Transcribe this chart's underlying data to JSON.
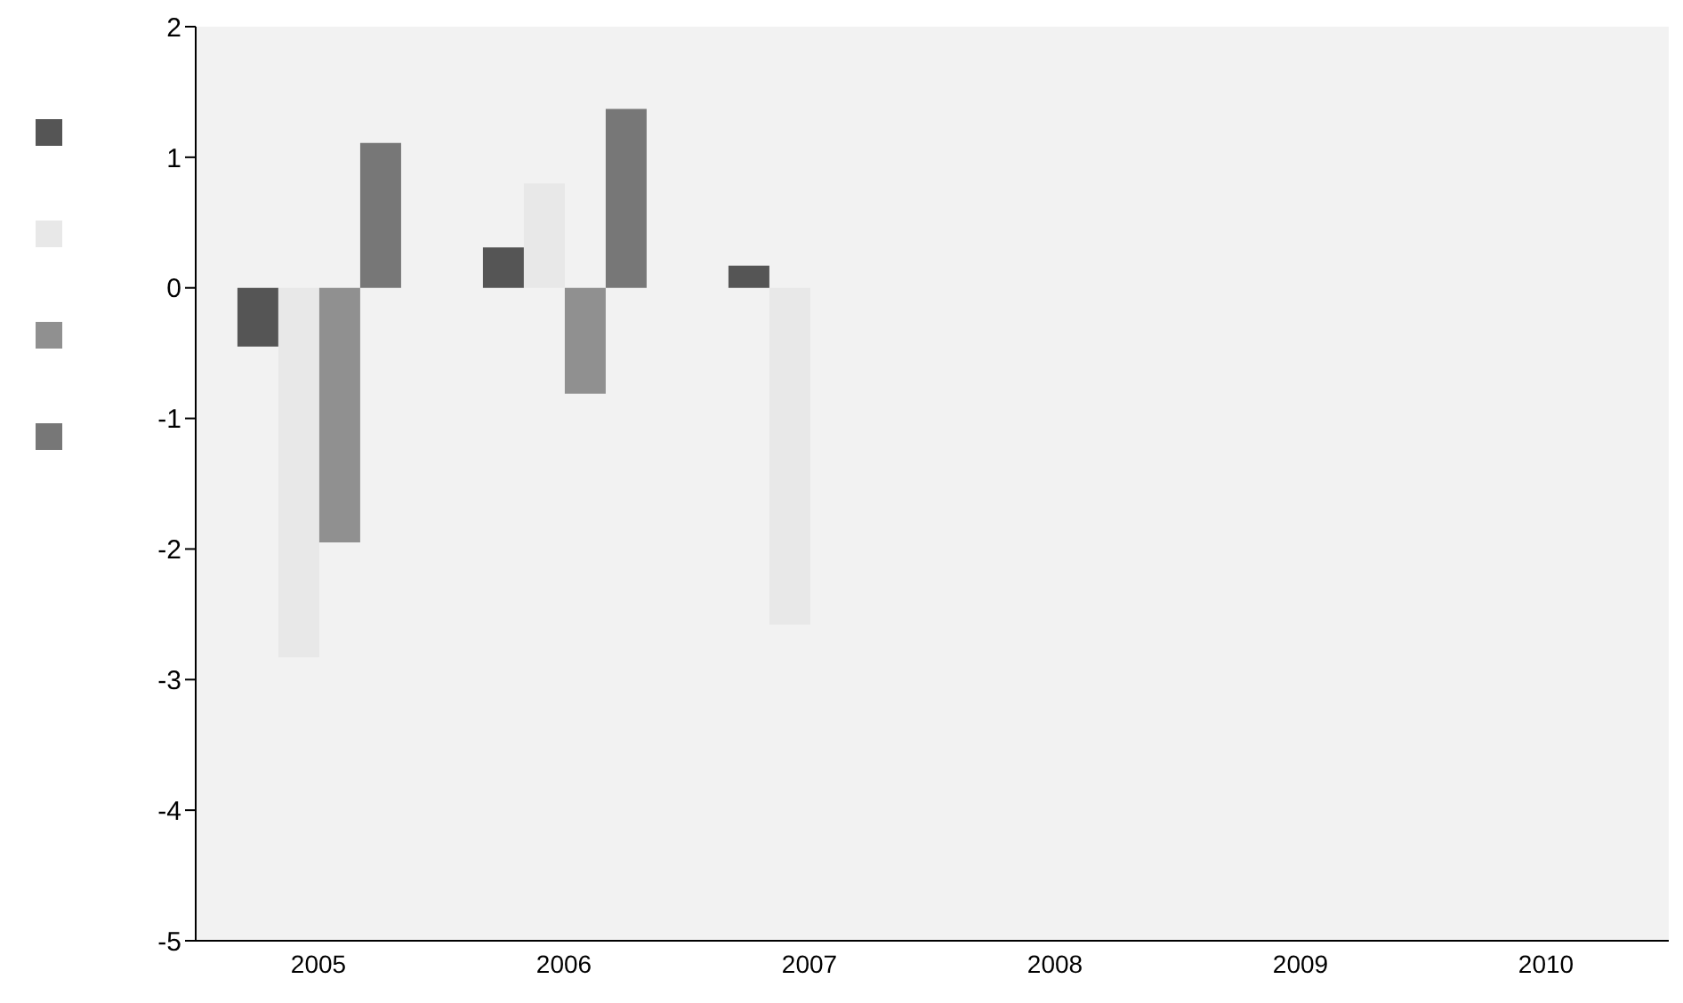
{
  "chart_data": {
    "type": "bar",
    "categories": [
      "2005",
      "2006",
      "2007",
      "2008",
      "2009",
      "2010"
    ],
    "series": [
      {
        "color": "#555555",
        "values": [
          -0.45,
          0.31,
          0.17,
          null,
          null,
          null
        ]
      },
      {
        "color": "#e8e8e8",
        "values": [
          -2.83,
          0.8,
          -2.58,
          null,
          null,
          null
        ]
      },
      {
        "color": "#909090",
        "values": [
          -1.95,
          -0.81,
          null,
          null,
          null,
          null
        ]
      },
      {
        "color": "#777777",
        "values": [
          1.11,
          1.37,
          null,
          null,
          null,
          null
        ]
      }
    ],
    "ylim": [
      -5,
      2
    ],
    "yticks": [
      -5,
      -4,
      -3,
      -2,
      -1,
      0,
      1,
      2
    ],
    "grid": false
  }
}
